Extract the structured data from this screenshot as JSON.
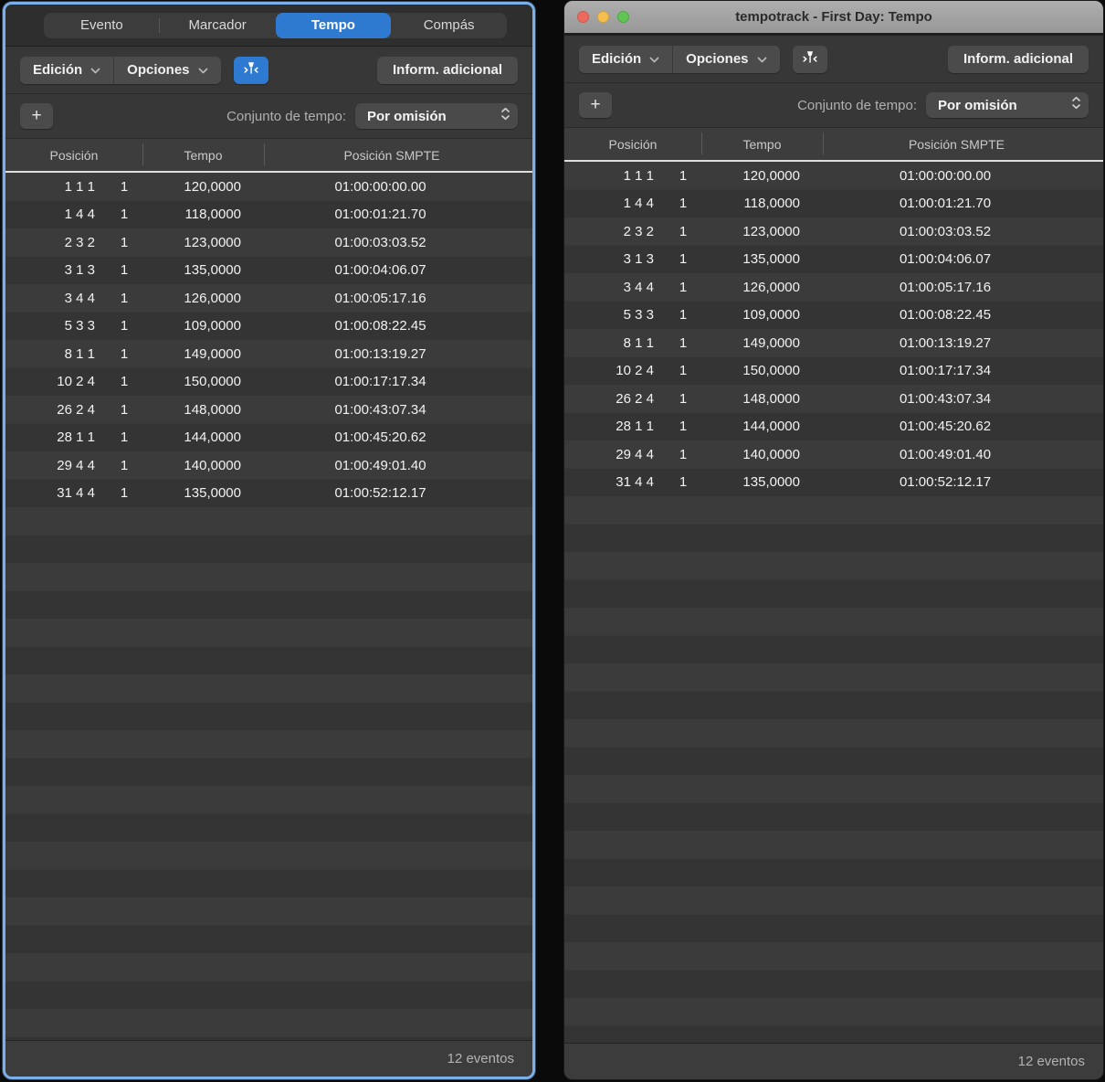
{
  "colors": {
    "accent": "#2e7ad1",
    "focus_ring": "#7caeea",
    "traffic_red": "#ed6a5e",
    "traffic_yellow": "#f5bf4f",
    "traffic_green": "#61c454"
  },
  "tabs": [
    {
      "label": "Evento",
      "active": false
    },
    {
      "label": "Marcador",
      "active": false
    },
    {
      "label": "Tempo",
      "active": true
    },
    {
      "label": "Compás",
      "active": false
    }
  ],
  "window": {
    "title": "tempotrack - First Day: Tempo"
  },
  "toolbar": {
    "edit_menu": "Edición",
    "options_menu": "Opciones",
    "additional_info": "Inform. adicional"
  },
  "tempo_set": {
    "add_button": "+",
    "label": "Conjunto de tempo:",
    "selected_option": "Por omisión"
  },
  "table": {
    "headers": {
      "position": "Posición",
      "tempo": "Tempo",
      "smpte": "Posición SMPTE"
    },
    "rows": [
      {
        "position": "1 1 1",
        "sub": "1",
        "tempo": "120,0000",
        "smpte": "01:00:00:00.00"
      },
      {
        "position": "1 4 4",
        "sub": "1",
        "tempo": "118,0000",
        "smpte": "01:00:01:21.70"
      },
      {
        "position": "2 3 2",
        "sub": "1",
        "tempo": "123,0000",
        "smpte": "01:00:03:03.52"
      },
      {
        "position": "3 1 3",
        "sub": "1",
        "tempo": "135,0000",
        "smpte": "01:00:04:06.07"
      },
      {
        "position": "3 4 4",
        "sub": "1",
        "tempo": "126,0000",
        "smpte": "01:00:05:17.16"
      },
      {
        "position": "5 3 3",
        "sub": "1",
        "tempo": "109,0000",
        "smpte": "01:00:08:22.45"
      },
      {
        "position": "8 1 1",
        "sub": "1",
        "tempo": "149,0000",
        "smpte": "01:00:13:19.27"
      },
      {
        "position": "10 2 4",
        "sub": "1",
        "tempo": "150,0000",
        "smpte": "01:00:17:17.34"
      },
      {
        "position": "26 2 4",
        "sub": "1",
        "tempo": "148,0000",
        "smpte": "01:00:43:07.34"
      },
      {
        "position": "28 1 1",
        "sub": "1",
        "tempo": "144,0000",
        "smpte": "01:00:45:20.62"
      },
      {
        "position": "29 4 4",
        "sub": "1",
        "tempo": "140,0000",
        "smpte": "01:00:49:01.40"
      },
      {
        "position": "31 4 4",
        "sub": "1",
        "tempo": "135,0000",
        "smpte": "01:00:52:12.17"
      }
    ]
  },
  "status": {
    "event_count": "12 eventos"
  }
}
